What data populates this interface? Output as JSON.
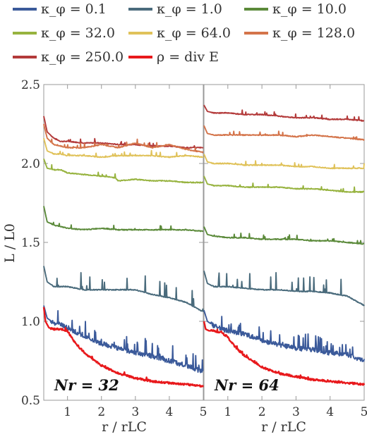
{
  "chart_data": {
    "type": "line",
    "legend": [
      {
        "label": "κ_φ = 0.1",
        "color": "#3b5a9a"
      },
      {
        "label": "κ_φ = 1.0",
        "color": "#4a6b7c"
      },
      {
        "label": "κ_φ = 10.0",
        "color": "#5b8a3a"
      },
      {
        "label": "κ_φ = 32.0",
        "color": "#97b33f"
      },
      {
        "label": "κ_φ = 64.0",
        "color": "#e0c25a"
      },
      {
        "label": "κ_φ = 128.0",
        "color": "#d4744a"
      },
      {
        "label": "κ_φ = 250.0",
        "color": "#b33a3a"
      },
      {
        "label": "ρ = div E",
        "color": "#e8191c"
      }
    ],
    "ylabel": "L / L0",
    "xlabel": "r / rLC",
    "xlim": [
      0.3,
      5
    ],
    "ylim": [
      0.5,
      2.5
    ],
    "xticks": [
      "1",
      "2",
      "3",
      "4",
      "5"
    ],
    "yticks": [
      "0.5",
      "1.0",
      "1.5",
      "2.0",
      "2.5"
    ],
    "panels": [
      {
        "label": "Nr = 32",
        "series": [
          {
            "key": "k250",
            "color": "#b33a3a",
            "points": [
              [
                0.3,
                2.3
              ],
              [
                0.4,
                2.2
              ],
              [
                0.6,
                2.16
              ],
              [
                0.8,
                2.14
              ],
              [
                1.0,
                2.14
              ],
              [
                1.5,
                2.13
              ],
              [
                2.0,
                2.13
              ],
              [
                2.5,
                2.12
              ],
              [
                3.0,
                2.12
              ],
              [
                3.5,
                2.11
              ],
              [
                4.0,
                2.11
              ],
              [
                4.5,
                2.1
              ],
              [
                5.0,
                2.1
              ]
            ]
          },
          {
            "key": "k128",
            "color": "#d4744a",
            "points": [
              [
                0.3,
                2.25
              ],
              [
                0.4,
                2.16
              ],
              [
                0.6,
                2.12
              ],
              [
                0.8,
                2.11
              ],
              [
                1.0,
                2.1
              ],
              [
                1.5,
                2.1
              ],
              [
                2.0,
                2.12
              ],
              [
                2.5,
                2.1
              ],
              [
                3.0,
                2.13
              ],
              [
                3.5,
                2.1
              ],
              [
                4.0,
                2.12
              ],
              [
                4.5,
                2.09
              ],
              [
                5.0,
                2.07
              ]
            ]
          },
          {
            "key": "k64",
            "color": "#e0c25a",
            "points": [
              [
                0.3,
                2.16
              ],
              [
                0.4,
                2.08
              ],
              [
                0.6,
                2.06
              ],
              [
                0.8,
                2.06
              ],
              [
                1.0,
                2.05
              ],
              [
                1.5,
                2.05
              ],
              [
                2.0,
                2.04
              ],
              [
                2.5,
                2.05
              ],
              [
                3.0,
                2.05
              ],
              [
                3.5,
                2.05
              ],
              [
                4.0,
                2.04
              ],
              [
                4.5,
                2.05
              ],
              [
                5.0,
                2.04
              ]
            ]
          },
          {
            "key": "k32",
            "color": "#97b33f",
            "points": [
              [
                0.3,
                2.03
              ],
              [
                0.4,
                1.97
              ],
              [
                0.6,
                1.96
              ],
              [
                0.8,
                1.96
              ],
              [
                1.0,
                1.94
              ],
              [
                1.5,
                1.93
              ],
              [
                2.0,
                1.92
              ],
              [
                2.4,
                1.91
              ],
              [
                2.5,
                1.89
              ],
              [
                3.0,
                1.9
              ],
              [
                3.5,
                1.89
              ],
              [
                4.0,
                1.89
              ],
              [
                4.5,
                1.88
              ],
              [
                5.0,
                1.88
              ]
            ]
          },
          {
            "key": "k10",
            "color": "#5b8a3a",
            "points": [
              [
                0.3,
                1.73
              ],
              [
                0.4,
                1.63
              ],
              [
                0.6,
                1.61
              ],
              [
                0.8,
                1.6
              ],
              [
                1.0,
                1.59
              ],
              [
                1.5,
                1.58
              ],
              [
                2.0,
                1.59
              ],
              [
                2.5,
                1.58
              ],
              [
                3.0,
                1.58
              ],
              [
                3.5,
                1.58
              ],
              [
                4.0,
                1.58
              ],
              [
                4.5,
                1.58
              ],
              [
                5.0,
                1.57
              ]
            ]
          },
          {
            "key": "k1",
            "color": "#4a6b7c",
            "points": [
              [
                0.3,
                1.35
              ],
              [
                0.4,
                1.25
              ],
              [
                0.6,
                1.22
              ],
              [
                0.8,
                1.22
              ],
              [
                1.0,
                1.22
              ],
              [
                1.5,
                1.2
              ],
              [
                2.0,
                1.2
              ],
              [
                2.5,
                1.2
              ],
              [
                3.0,
                1.2
              ],
              [
                3.5,
                1.17
              ],
              [
                4.0,
                1.15
              ],
              [
                4.5,
                1.12
              ],
              [
                5.0,
                1.06
              ]
            ]
          },
          {
            "key": "k01",
            "color": "#3b5a9a",
            "points": [
              [
                0.3,
                1.1
              ],
              [
                0.4,
                1.02
              ],
              [
                0.6,
                0.99
              ],
              [
                0.8,
                0.98
              ],
              [
                1.0,
                0.96
              ],
              [
                1.5,
                0.9
              ],
              [
                2.0,
                0.86
              ],
              [
                2.5,
                0.83
              ],
              [
                3.0,
                0.8
              ],
              [
                3.5,
                0.78
              ],
              [
                4.0,
                0.75
              ],
              [
                4.5,
                0.72
              ],
              [
                5.0,
                0.68
              ]
            ]
          },
          {
            "key": "rho",
            "color": "#e8191c",
            "points": [
              [
                0.3,
                1.09
              ],
              [
                0.35,
                1.0
              ],
              [
                0.45,
                0.96
              ],
              [
                0.6,
                0.95
              ],
              [
                0.8,
                0.95
              ],
              [
                1.0,
                0.94
              ],
              [
                1.2,
                0.87
              ],
              [
                1.5,
                0.8
              ],
              [
                2.0,
                0.72
              ],
              [
                2.5,
                0.67
              ],
              [
                3.0,
                0.64
              ],
              [
                3.5,
                0.62
              ],
              [
                4.0,
                0.61
              ],
              [
                4.5,
                0.6
              ],
              [
                5.0,
                0.59
              ]
            ]
          }
        ]
      },
      {
        "label": "Nr = 64",
        "series": [
          {
            "key": "k250",
            "color": "#b33a3a",
            "points": [
              [
                0.3,
                2.37
              ],
              [
                0.4,
                2.33
              ],
              [
                0.6,
                2.32
              ],
              [
                1.0,
                2.32
              ],
              [
                1.5,
                2.31
              ],
              [
                2.0,
                2.31
              ],
              [
                2.5,
                2.3
              ],
              [
                3.0,
                2.29
              ],
              [
                3.5,
                2.29
              ],
              [
                4.0,
                2.28
              ],
              [
                4.5,
                2.28
              ],
              [
                5.0,
                2.27
              ]
            ]
          },
          {
            "key": "k128",
            "color": "#d4744a",
            "points": [
              [
                0.3,
                2.24
              ],
              [
                0.4,
                2.19
              ],
              [
                0.6,
                2.18
              ],
              [
                1.0,
                2.18
              ],
              [
                1.5,
                2.18
              ],
              [
                2.0,
                2.18
              ],
              [
                2.5,
                2.18
              ],
              [
                3.0,
                2.17
              ],
              [
                3.5,
                2.18
              ],
              [
                4.0,
                2.17
              ],
              [
                4.5,
                2.16
              ],
              [
                5.0,
                2.15
              ]
            ]
          },
          {
            "key": "k64",
            "color": "#e0c25a",
            "points": [
              [
                0.3,
                2.06
              ],
              [
                0.4,
                2.01
              ],
              [
                0.6,
                2.0
              ],
              [
                1.0,
                2.0
              ],
              [
                1.5,
                1.99
              ],
              [
                2.0,
                1.99
              ],
              [
                2.5,
                1.99
              ],
              [
                3.0,
                1.98
              ],
              [
                3.5,
                1.98
              ],
              [
                4.0,
                1.97
              ],
              [
                4.5,
                1.97
              ],
              [
                5.0,
                1.97
              ]
            ]
          },
          {
            "key": "k32",
            "color": "#97b33f",
            "points": [
              [
                0.3,
                1.92
              ],
              [
                0.4,
                1.87
              ],
              [
                0.6,
                1.86
              ],
              [
                1.0,
                1.86
              ],
              [
                1.5,
                1.85
              ],
              [
                2.0,
                1.85
              ],
              [
                2.5,
                1.85
              ],
              [
                3.0,
                1.84
              ],
              [
                3.5,
                1.84
              ],
              [
                4.0,
                1.83
              ],
              [
                4.5,
                1.82
              ],
              [
                5.0,
                1.82
              ]
            ]
          },
          {
            "key": "k10",
            "color": "#5b8a3a",
            "points": [
              [
                0.3,
                1.6
              ],
              [
                0.4,
                1.55
              ],
              [
                0.6,
                1.54
              ],
              [
                1.0,
                1.53
              ],
              [
                1.5,
                1.53
              ],
              [
                2.0,
                1.52
              ],
              [
                2.5,
                1.52
              ],
              [
                3.0,
                1.52
              ],
              [
                3.5,
                1.51
              ],
              [
                4.0,
                1.51
              ],
              [
                4.5,
                1.5
              ],
              [
                5.0,
                1.49
              ]
            ]
          },
          {
            "key": "k1",
            "color": "#4a6b7c",
            "points": [
              [
                0.3,
                1.32
              ],
              [
                0.4,
                1.24
              ],
              [
                0.6,
                1.22
              ],
              [
                1.0,
                1.22
              ],
              [
                1.5,
                1.21
              ],
              [
                2.0,
                1.2
              ],
              [
                2.5,
                1.2
              ],
              [
                3.0,
                1.19
              ],
              [
                3.5,
                1.19
              ],
              [
                4.0,
                1.18
              ],
              [
                4.5,
                1.16
              ],
              [
                5.0,
                1.1
              ]
            ]
          },
          {
            "key": "k01",
            "color": "#3b5a9a",
            "points": [
              [
                0.3,
                1.07
              ],
              [
                0.4,
                1.0
              ],
              [
                0.6,
                0.97
              ],
              [
                1.0,
                0.94
              ],
              [
                1.5,
                0.92
              ],
              [
                2.0,
                0.88
              ],
              [
                2.5,
                0.85
              ],
              [
                3.0,
                0.83
              ],
              [
                3.5,
                0.82
              ],
              [
                4.0,
                0.8
              ],
              [
                4.5,
                0.79
              ],
              [
                5.0,
                0.75
              ]
            ]
          },
          {
            "key": "rho",
            "color": "#e8191c",
            "points": [
              [
                0.3,
                1.0
              ],
              [
                0.35,
                0.95
              ],
              [
                0.45,
                0.94
              ],
              [
                0.6,
                0.94
              ],
              [
                0.8,
                0.93
              ],
              [
                1.0,
                0.9
              ],
              [
                1.2,
                0.84
              ],
              [
                1.5,
                0.78
              ],
              [
                2.0,
                0.71
              ],
              [
                2.5,
                0.67
              ],
              [
                3.0,
                0.65
              ],
              [
                3.5,
                0.63
              ],
              [
                4.0,
                0.62
              ],
              [
                4.5,
                0.61
              ],
              [
                5.0,
                0.6
              ]
            ]
          }
        ]
      }
    ]
  }
}
